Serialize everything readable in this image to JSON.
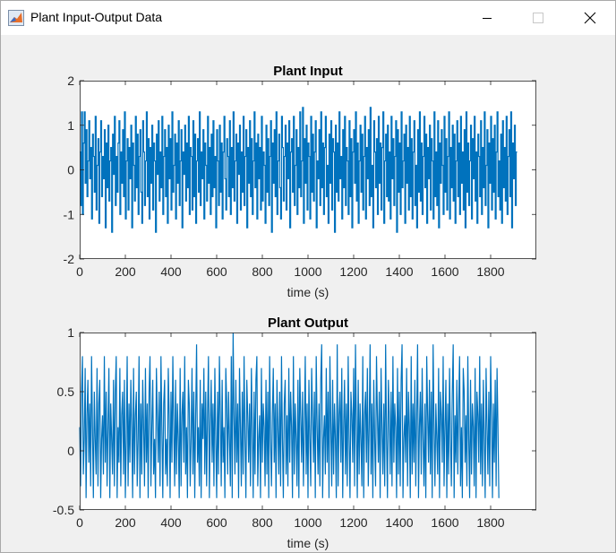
{
  "window": {
    "title": "Plant Input-Output Data",
    "icon": "matlab-figure-icon",
    "controls": [
      "minimize-icon",
      "maximize-icon",
      "close-icon"
    ]
  },
  "colors": {
    "line": "#0072bd",
    "axes_bg": "#ffffff",
    "figure_bg": "#f0f0f0",
    "axis": "#262626"
  },
  "chart_data": [
    {
      "type": "line",
      "title": "Plant Input",
      "xlabel": "time (s)",
      "ylabel": "",
      "xlim": [
        0,
        2000
      ],
      "ylim": [
        -2,
        2
      ],
      "xticks": [
        0,
        200,
        400,
        600,
        800,
        1000,
        1200,
        1400,
        1600,
        1800
      ],
      "xtick_labels": [
        "0",
        "200",
        "400",
        "600",
        "800",
        "1000",
        "1200",
        "1400",
        "1600",
        "1800"
      ],
      "yticks": [
        -2,
        -1,
        0,
        1,
        2
      ],
      "ytick_labels": [
        "-2",
        "-1",
        "0",
        "1",
        "2"
      ],
      "grid": false,
      "series": [
        {
          "style": "stairs",
          "dx": 4,
          "values": [
            0.4,
            -0.8,
            1.3,
            -1,
            0.6,
            1.3,
            -0.3,
            0.9,
            -0.6,
            0.2,
            1.1,
            -0.2,
            0.5,
            -1.1,
            0.8,
            0.3,
            -0.5,
            1.2,
            -0.9,
            0.1,
            0.7,
            -1.2,
            0.4,
            1.1,
            -0.6,
            0.3,
            -0.2,
            0.9,
            -1.3,
            0.6,
            -0.4,
            1,
            -0.7,
            0.2,
            0.5,
            -1.4,
            0.8,
            -0.1,
            1.2,
            -0.8,
            0.3,
            -0.5,
            0.6,
            1.1,
            -1,
            0.4,
            -0.3,
            0.9,
            -0.6,
            1.3,
            -1.1,
            0.2,
            0.7,
            -0.9,
            0.5,
            -0.2,
            1,
            -1.3,
            0.6,
            0.1,
            -0.7,
            1.2,
            -0.4,
            0.8,
            -1,
            0.3,
            0.9,
            -0.5,
            -1.2,
            1.1,
            0.4,
            -0.8,
            0.2,
            1.3,
            -0.6,
            0.7,
            -1.1,
            0.5,
            -0.3,
            1,
            -0.9,
            0.6,
            0.2,
            -1.4,
            0.8,
            -0.1,
            1.1,
            -0.7,
            0.4,
            -0.4,
            1.2,
            -1,
            0.3,
            0.9,
            -0.6,
            0.5,
            -1.2,
            1,
            -0.2,
            0.7,
            -0.9,
            1.3,
            -0.5,
            0.1,
            0.8,
            -1.1,
            0.6,
            -0.3,
            1.1,
            -0.8,
            0.2,
            0.9,
            -1.3,
            0.4,
            -0.1,
            1,
            -0.7,
            0.6,
            -0.4,
            1.2,
            -1,
            0.5,
            0.3,
            -0.9,
            1.1,
            -0.6,
            0.8,
            -1.2,
            0.2,
            0.7,
            -0.5,
            1.3,
            -0.8,
            0.4,
            -0.2,
            0.9,
            -1.1,
            0.6,
            0.1,
            -0.7,
            1.2,
            -0.3,
            0.5,
            -1,
            0.8,
            -0.6,
            1.1,
            -0.4,
            0.3,
            -1.3,
            0.9,
            0.2,
            -0.8,
            1,
            -0.5,
            0.6,
            -1.1,
            0.4,
            1.2,
            -0.2,
            -0.9,
            0.7,
            0.3,
            -0.6,
            1.1,
            -1,
            0.5,
            -0.4,
            1.3,
            -0.7,
            0.2,
            0.8,
            -1.2,
            0.6,
            -0.1,
            1,
            -0.9,
            0.4,
            -0.5,
            1.2,
            -0.8,
            0.3,
            0.9,
            -1.3,
            0.5,
            -0.3,
            1.1,
            -0.6,
            0.7,
            -1,
            0.2,
            1.3,
            -0.4,
            0.6,
            -1.1,
            0.8,
            -0.2,
            0.5,
            -0.9,
            1.2,
            -0.7,
            0.4,
            0.1,
            -1.2,
            1,
            -0.5,
            0.7,
            -0.8,
            0.3,
            1.1,
            -1.4,
            0.6,
            -0.3,
            0.9,
            -0.6,
            1.3,
            -1,
            0.2,
            0.8,
            -0.4,
            -1.1,
            1.2,
            0.5,
            -0.7,
            0.3,
            1,
            -0.9,
            0.6,
            -0.2,
            1.1,
            -1.3,
            0.4,
            0.7,
            -0.5,
            1.2,
            -0.8,
            0.1,
            0.9,
            -1,
            0.5,
            -0.4,
            1.3,
            -0.6,
            0.2,
            1.4,
            -1.2,
            0.7,
            -0.3,
            1,
            -0.9,
            0.6,
            0.3,
            -1.1,
            1.2,
            -0.5,
            0.8,
            -0.7,
            0.4,
            1.1,
            -1.3,
            0.2,
            -0.2,
            0.9,
            -0.8,
            1.3,
            -0.4,
            0.6,
            -1,
            0.5,
            1.2,
            -0.6,
            0.1,
            -1.2,
            0.8,
            -0.3,
            1.1,
            -0.9,
            0.7,
            0.4,
            -1.4,
            1,
            -0.5,
            0.6,
            -0.7,
            1.3,
            -0.2,
            0.3,
            -1.1,
            0.9,
            -0.4,
            1.2,
            -0.8,
            0.5,
            0.2,
            -1,
            1.1,
            -0.6,
            0.7,
            -1.3,
            0.4,
            0.9,
            -0.3,
            1.3,
            -0.7,
            0.6,
            -1.2,
            0.2,
            1,
            -0.5,
            0.8,
            -0.9,
            0.3,
            1.2,
            -1.1,
            0.5,
            -0.2,
            0.9,
            -0.8,
            1.4,
            -0.6,
            0.1,
            -1.3,
            1.1,
            0.4,
            -0.4,
            0.7,
            -1,
            1.2,
            -0.3,
            0.6,
            -0.9,
            0.5,
            1.3,
            -1.2,
            0.2,
            0.8,
            -0.6,
            1,
            -0.7,
            0.4,
            -1.1,
            1.2,
            -0.2,
            0.7,
            -0.8,
            0.3,
            1.1,
            -1.4,
            0.9,
            -0.5,
            0.6,
            -1,
            1.3,
            -0.4,
            0.2,
            0.8,
            -1.2,
            1,
            -0.3,
            0.5,
            -0.9,
            1.2,
            -0.6,
            0.7,
            -1.1,
            0.4,
            1.1,
            -0.8,
            0.1,
            -1.3,
            0.9,
            -0.5,
            1.3,
            -0.7,
            0.6,
            -1,
            0.3,
            1.2,
            -0.4,
            0.8,
            -1.2,
            0.5,
            -0.2,
            1,
            -0.9,
            0.7,
            0.2,
            -1.1,
            1.3,
            -0.6,
            0.4,
            -0.8,
            1.1,
            -1.3,
            0.6,
            -0.3,
            0.9,
            0.1,
            -1,
            1.2,
            -0.5,
            0.7,
            -0.9,
            0.3,
            1.3,
            -1.1,
            0.5,
            -0.4,
            1,
            -0.7,
            0.8,
            -1.2,
            0.2,
            1.1,
            -0.6,
            0.6,
            -1,
            1.2,
            -0.3,
            0.4,
            -0.9,
            0.9,
            -1.3,
            1.3,
            -0.5,
            0.6,
            -0.8,
            0.2,
            1,
            -1.1,
            0.7,
            -0.2,
            1.2,
            -0.7,
            0.4,
            -1.2,
            0.8,
            0.3,
            -0.6,
            1.1,
            -1,
            0.5,
            -0.4,
            1.3,
            -0.8,
            0.1,
            0.9,
            -1.3,
            0.6,
            -0.3,
            1.2,
            -0.9,
            0.7,
            -0.5,
            1,
            -1.1,
            0.4,
            1.3,
            -0.6,
            0.2,
            -0.9,
            0.8,
            -1.2,
            1.1,
            -0.4,
            0.5,
            -0.7,
            1.2,
            -1,
            0.3,
            0.9,
            -0.6,
            1.3,
            -1.3,
            0.6,
            -0.2,
            1,
            -0.8,
            0.4
          ]
        }
      ]
    },
    {
      "type": "line",
      "title": "Plant Output",
      "xlabel": "time (s)",
      "ylabel": "",
      "xlim": [
        0,
        2000
      ],
      "ylim": [
        -0.5,
        1
      ],
      "xticks": [
        0,
        200,
        400,
        600,
        800,
        1000,
        1200,
        1400,
        1600,
        1800
      ],
      "xtick_labels": [
        "0",
        "200",
        "400",
        "600",
        "800",
        "1000",
        "1200",
        "1400",
        "1600",
        "1800"
      ],
      "yticks": [
        -0.5,
        0,
        0.5,
        1
      ],
      "ytick_labels": [
        "-0.5",
        "0",
        "0.5",
        "1"
      ],
      "grid": false,
      "series": [
        {
          "style": "line",
          "dx": 4,
          "values": [
            0.2,
            -0.3,
            0.5,
            0.8,
            -0.2,
            0.1,
            0.7,
            -0.4,
            0.3,
            0.6,
            -0.1,
            0.4,
            -0.3,
            0.8,
            0.2,
            -0.4,
            0.5,
            0.1,
            -0.2,
            0.7,
            -0.3,
            0.4,
            0.6,
            -0.4,
            0.1,
            0.3,
            -0.2,
            0.8,
            -0.1,
            0.5,
            -0.3,
            0.2,
            0.7,
            -0.4,
            0.4,
            0.1,
            -0.2,
            0.6,
            -0.3,
            0.5,
            0.8,
            -0.4,
            0.2,
            -0.1,
            0.7,
            -0.3,
            0.3,
            0.5,
            -0.2,
            0.6,
            -0.4,
            0.1,
            0.8,
            -0.3,
            0.4,
            -0.1,
            0.6,
            0.2,
            -0.4,
            0.7,
            -0.2,
            0.3,
            0.5,
            -0.3,
            0.1,
            0.8,
            -0.4,
            0.4,
            -0.2,
            0.6,
            0.2,
            -0.3,
            0.7,
            -0.1,
            0.4,
            -0.4,
            0.5,
            0.8,
            -0.3,
            0.2,
            0.6,
            -0.2,
            0.1,
            -0.4,
            0.7,
            0.3,
            -0.1,
            0.5,
            -0.3,
            0.8,
            0.2,
            -0.4,
            0.4,
            0.6,
            -0.2,
            0.1,
            -0.3,
            0.7,
            0.3,
            -0.4,
            0.5,
            -0.1,
            0.8,
            0.2,
            -0.3,
            0.6,
            -0.2,
            0.4,
            0.1,
            -0.4,
            0.7,
            -0.3,
            0.3,
            0.5,
            -0.1,
            0.8,
            -0.2,
            0.2,
            -0.4,
            0.6,
            0.4,
            -0.3,
            0.1,
            0.7,
            -0.2,
            0.5,
            -0.4,
            0.3,
            0.9,
            -0.1,
            0.2,
            -0.3,
            0.6,
            -0.4,
            0.4,
            0.1,
            0.7,
            -0.2,
            0.5,
            -0.3,
            0.3,
            0.8,
            -0.4,
            0.2,
            0.6,
            -0.1,
            0.4,
            -0.3,
            0.7,
            0.1,
            -0.4,
            0.5,
            -0.2,
            0.8,
            0.3,
            -0.3,
            0.6,
            -0.1,
            0.2,
            -0.4,
            0.7,
            0.4,
            -0.2,
            0.5,
            0.1,
            -0.3,
            0.8,
            -0.4,
            1,
            0.3,
            -0.2,
            0.6,
            -0.1,
            0.4,
            -0.4,
            0.7,
            0.2,
            -0.3,
            0.5,
            -0.2,
            0.8,
            0.1,
            -0.4,
            0.6,
            0.3,
            -0.1,
            0.4,
            -0.3,
            0.7,
            0.2,
            -0.4,
            0.5,
            -0.2,
            0.6,
            0.8,
            -0.3,
            0.1,
            0.3,
            -0.4,
            0.7,
            -0.1,
            0.4,
            0.2,
            -0.3,
            0.6,
            -0.2,
            0.5,
            -0.4,
            0.8,
            0.1,
            -0.3,
            0.3,
            0.7,
            -0.1,
            0.4,
            -0.4,
            0.6,
            0.2,
            -0.2,
            0.5,
            -0.3,
            0.8,
            0.1,
            -0.4,
            0.4,
            0.6,
            -0.2,
            0.3,
            -0.3,
            0.7,
            -0.1,
            0.5,
            0.2,
            -0.4,
            0.8,
            -0.2,
            0.4,
            0.1,
            -0.3,
            0.6,
            -0.4,
            0.7,
            0.3,
            -0.1,
            0.5,
            -0.3,
            0.2,
            0.8,
            -0.2,
            0.4,
            -0.4,
            0.6,
            0.1,
            -0.3,
            0.7,
            0.3,
            -0.1,
            0.5,
            -0.4,
            0.8,
            0.2,
            -0.2,
            0.4,
            -0.3,
            0.6,
            0.9,
            -0.4,
            0.1,
            0.3,
            -0.2,
            0.7,
            -0.1,
            0.5,
            -0.4,
            0.8,
            0.2,
            -0.3,
            0.6,
            -0.2,
            0.4,
            0.1,
            -0.4,
            0.9,
            -0.3,
            0.3,
            0.5,
            -0.1,
            0.7,
            -0.4,
            0.2,
            0.6,
            -0.2,
            0.4,
            -0.3,
            0.8,
            0.1,
            -0.4,
            0.5,
            0.3,
            -0.1,
            0.7,
            -0.3,
            0.9,
            0.2,
            -0.4,
            0.6,
            -0.2,
            0.4,
            0.1,
            -0.3,
            0.8,
            -0.4,
            0.3,
            0.5,
            -0.1,
            0.7,
            -0.3,
            0.2,
            0.9,
            -0.2,
            0.4,
            -0.4,
            0.6,
            0.1,
            -0.3,
            0.8,
            0.3,
            -0.1,
            0.5,
            -0.4,
            0.7,
            0.2,
            -0.2,
            0.4,
            -0.3,
            0.9,
            0.1,
            -0.4,
            0.6,
            0.3,
            -0.2,
            0.5,
            -0.3,
            0.8,
            -0.1,
            0.4,
            0.2,
            -0.4,
            0.7,
            -0.2,
            0.5,
            -0.3,
            0.6,
            0.9,
            -0.4,
            0.1,
            0.3,
            -0.1,
            0.7,
            -0.3,
            0.5,
            0.2,
            -0.4,
            0.8,
            -0.2,
            0.4,
            -0.1,
            0.6,
            -0.3,
            0.3,
            0.9,
            -0.4,
            0.2,
            0.5,
            -0.2,
            0.7,
            0.1,
            -0.3,
            0.4,
            -0.4,
            0.8,
            0.3,
            -0.1,
            0.6,
            -0.2,
            0.5,
            -0.4,
            0.9,
            0.2,
            -0.3,
            0.4,
            0.1,
            -0.2,
            0.7,
            -0.4,
            0.5,
            0.3,
            -0.1,
            0.8,
            -0.3,
            0.2,
            0.6,
            -0.4,
            0.4,
            -0.2,
            0.7,
            0.1,
            -0.3,
            0.5,
            0.9,
            -0.4,
            0.3,
            -0.1,
            0.6,
            -0.2,
            0.4,
            0.8,
            -0.3,
            0.2,
            -0.4,
            0.7,
            0.5,
            -0.1,
            0.3,
            -0.3,
            0.8,
            0.1,
            -0.4,
            0.6,
            -0.2,
            0.4,
            0.2,
            -0.3,
            0.7,
            -0.4,
            0.5,
            0.3,
            -0.1,
            0.8,
            -0.2,
            0.4,
            -0.3,
            0.6,
            0.1,
            -0.4,
            0.7,
            0.2,
            -0.2,
            0.5,
            -0.3,
            0.8,
            0.3,
            -0.4,
            0.4,
            -0.1,
            0.6,
            -0.3,
            0.7,
            0.2,
            -0.4
          ]
        }
      ]
    }
  ]
}
